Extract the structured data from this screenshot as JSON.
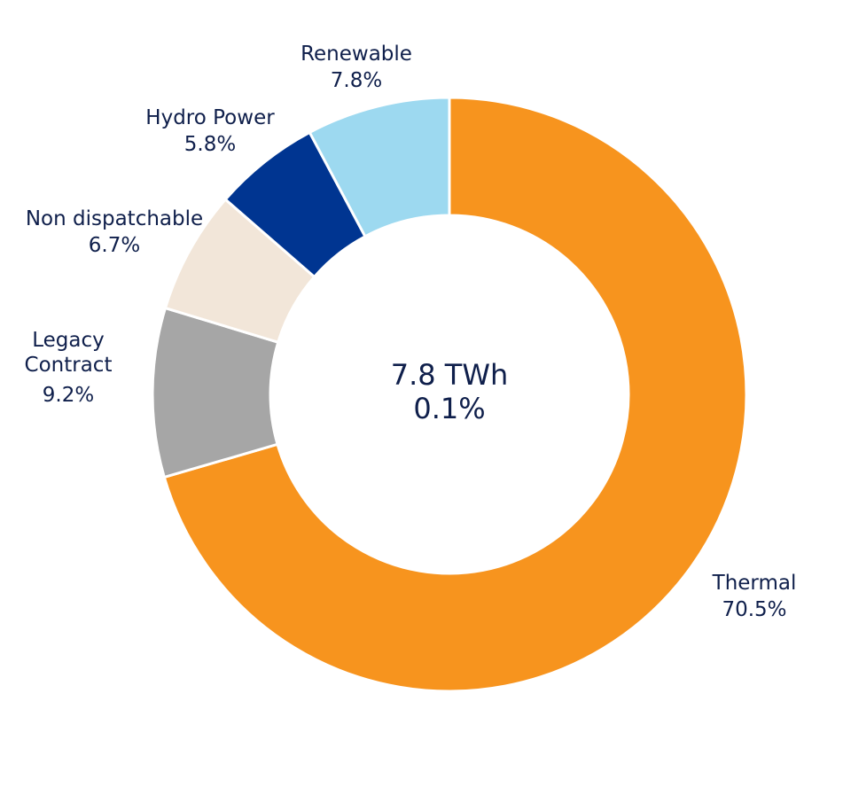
{
  "chart_data": {
    "type": "pie",
    "title": "",
    "center": {
      "line1": "7.8 TWh",
      "line2": "0.1%"
    },
    "slices": [
      {
        "name": "Thermal",
        "name_lines": [
          "Thermal"
        ],
        "value": 70.5,
        "value_label": "70.5%",
        "color": "#f7941e"
      },
      {
        "name": "Legacy Contract",
        "name_lines": [
          "Legacy",
          "Contract"
        ],
        "value": 9.2,
        "value_label": "9.2%",
        "color": "#a6a6a6"
      },
      {
        "name": "Non dispatchable",
        "name_lines": [
          "Non dispatchable"
        ],
        "value": 6.7,
        "value_label": "6.7%",
        "color": "#f2e6d9"
      },
      {
        "name": "Hydro Power",
        "name_lines": [
          "Hydro Power"
        ],
        "value": 5.8,
        "value_label": "5.8%",
        "color": "#003591"
      },
      {
        "name": "Renewable",
        "name_lines": [
          "Renewable"
        ],
        "value": 7.8,
        "value_label": "7.8%",
        "color": "#9dd9f0"
      }
    ],
    "order": "clockwise from 12 o'clock",
    "legend": "none (labels placed next to slices)"
  }
}
